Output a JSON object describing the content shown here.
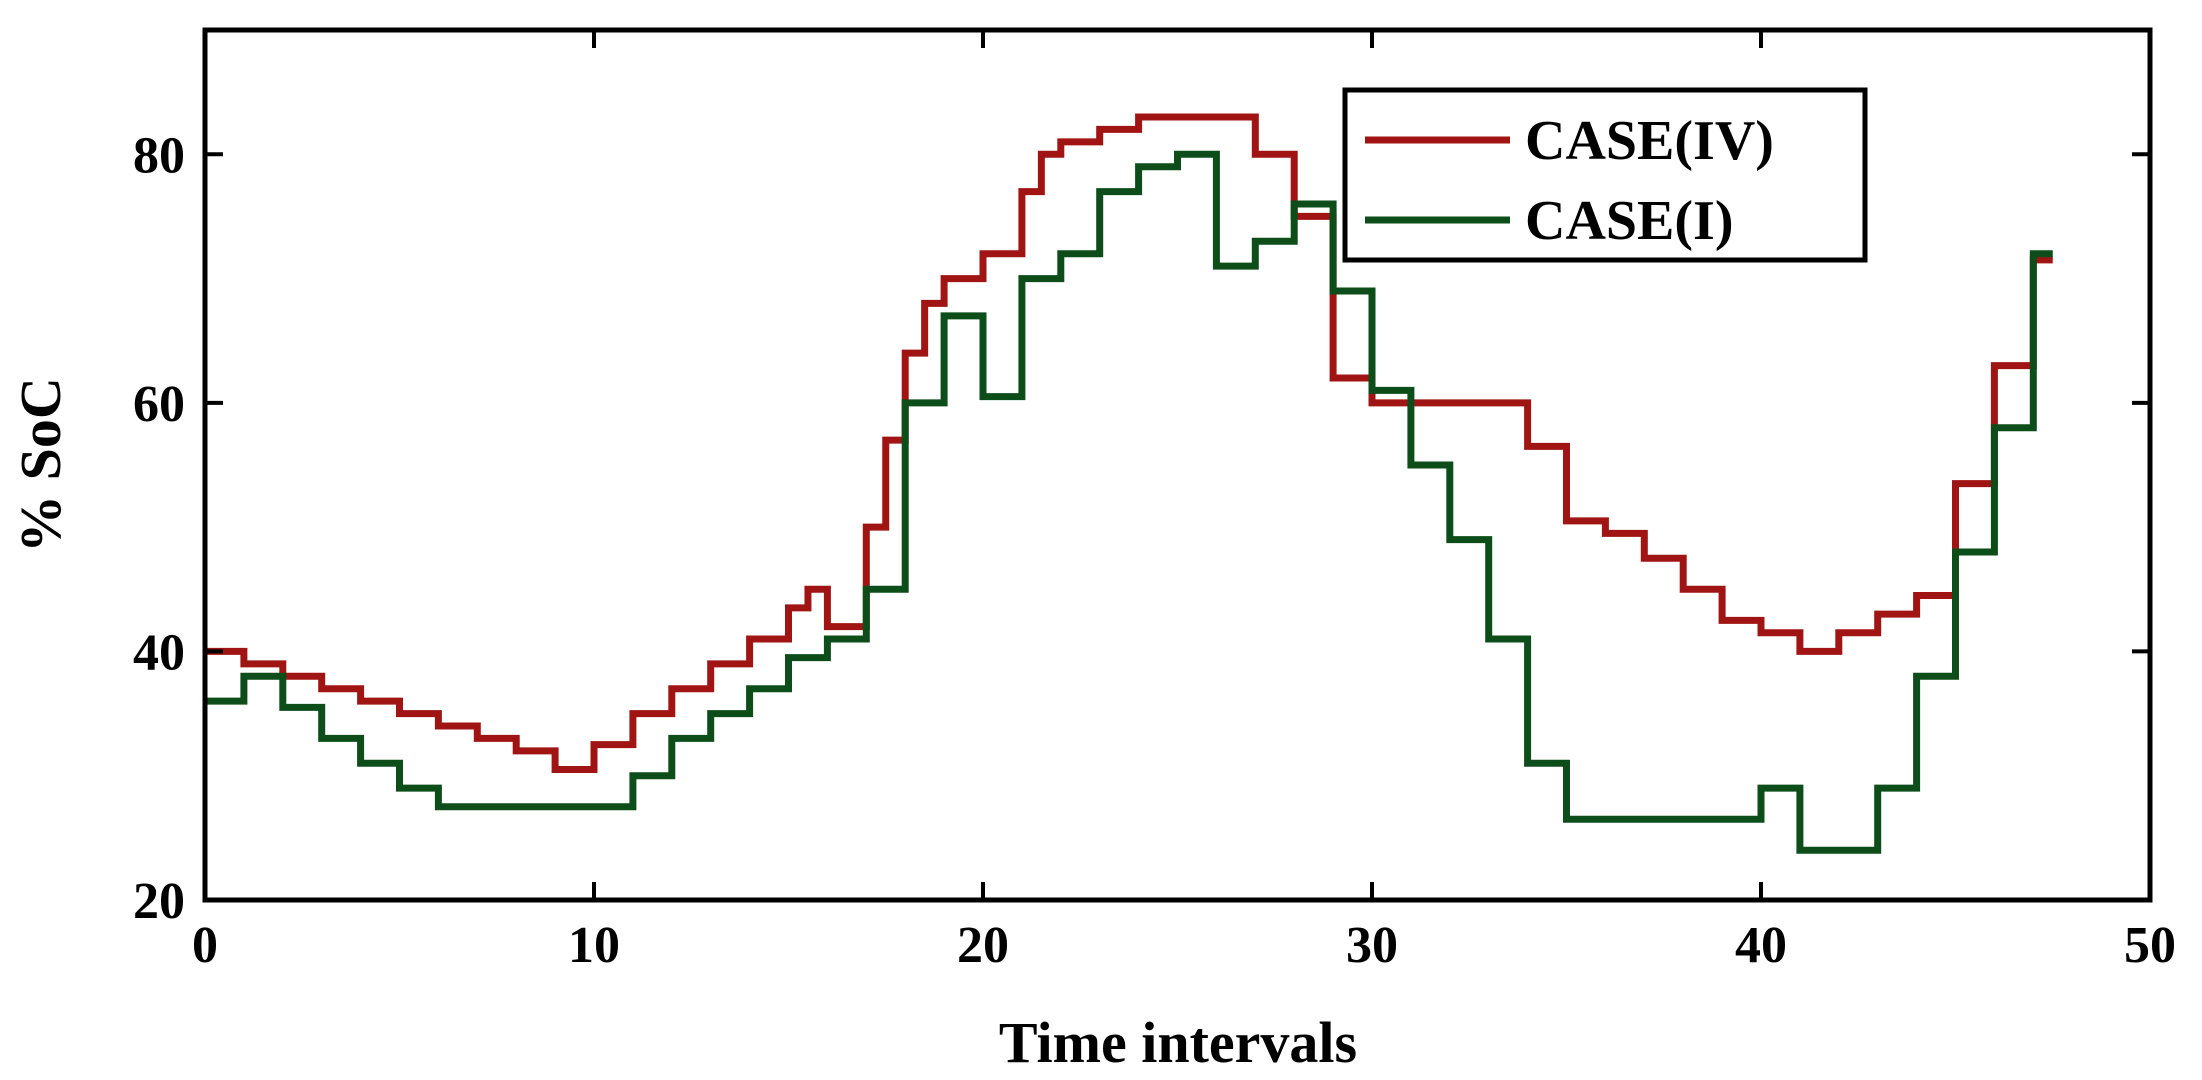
{
  "chart_data": {
    "type": "line",
    "step": true,
    "xlabel": "Time intervals",
    "ylabel": "% SoC",
    "xlim": [
      0,
      50
    ],
    "ylim": [
      20,
      90
    ],
    "xticks": [
      "0",
      "10",
      "20",
      "30",
      "40",
      "50"
    ],
    "xtick_values": [
      0,
      10,
      20,
      30,
      40,
      50
    ],
    "yticks": [
      "20",
      "40",
      "60",
      "80"
    ],
    "ytick_values": [
      20,
      40,
      60,
      80
    ],
    "grid": false,
    "legend_position": "top-right",
    "series": [
      {
        "name": "CASE(IV)",
        "color": "#a01414",
        "x": [
          0,
          1,
          2,
          3,
          4,
          5,
          6,
          7,
          8,
          9,
          10,
          11,
          12,
          13,
          14,
          15,
          15.5,
          16,
          17,
          17.5,
          18,
          18.5,
          19,
          20,
          21,
          21.5,
          22,
          23,
          24,
          25,
          26,
          26.5,
          27,
          28,
          29,
          30,
          31,
          32,
          33,
          33.5,
          34,
          34.5,
          35,
          36,
          37,
          38,
          39,
          40,
          41,
          42,
          43,
          44,
          45,
          46,
          47
        ],
        "values": [
          40,
          39,
          38,
          37,
          36,
          35,
          34,
          33,
          32,
          30.5,
          32.5,
          35,
          37,
          39,
          41,
          43.5,
          45,
          42,
          50,
          57,
          64,
          68,
          70,
          72,
          77,
          80,
          81,
          82,
          83,
          83,
          83,
          83,
          80,
          75,
          62,
          60,
          60,
          60,
          60,
          60,
          56.5,
          56.5,
          50.5,
          49.5,
          47.5,
          45,
          42.5,
          41.5,
          40,
          41.5,
          43,
          44.5,
          53.5,
          63,
          71.5
        ]
      },
      {
        "name": "CASE(I)",
        "color": "#0d4d1a",
        "x": [
          0,
          1,
          2,
          3,
          4,
          5,
          6,
          7,
          8,
          9,
          10,
          11,
          12,
          13,
          14,
          15,
          16,
          17,
          18,
          19,
          20,
          21,
          22,
          23,
          24,
          25,
          26,
          27,
          28,
          29,
          30,
          31,
          32,
          33,
          34,
          35,
          36,
          37,
          38,
          39,
          40,
          41,
          42,
          43,
          44,
          45,
          46,
          47
        ],
        "values": [
          36,
          38,
          35.5,
          33,
          31,
          29,
          27.5,
          27.5,
          27.5,
          27.5,
          27.5,
          30,
          33,
          35,
          37,
          39.5,
          41,
          45,
          60,
          67,
          60.5,
          70,
          72,
          77,
          79,
          80,
          71,
          73,
          76,
          69,
          61,
          55,
          49,
          41,
          31,
          26.5,
          26.5,
          26.5,
          26.5,
          26.5,
          29,
          24,
          24,
          29,
          38,
          48,
          58,
          72
        ]
      }
    ]
  }
}
